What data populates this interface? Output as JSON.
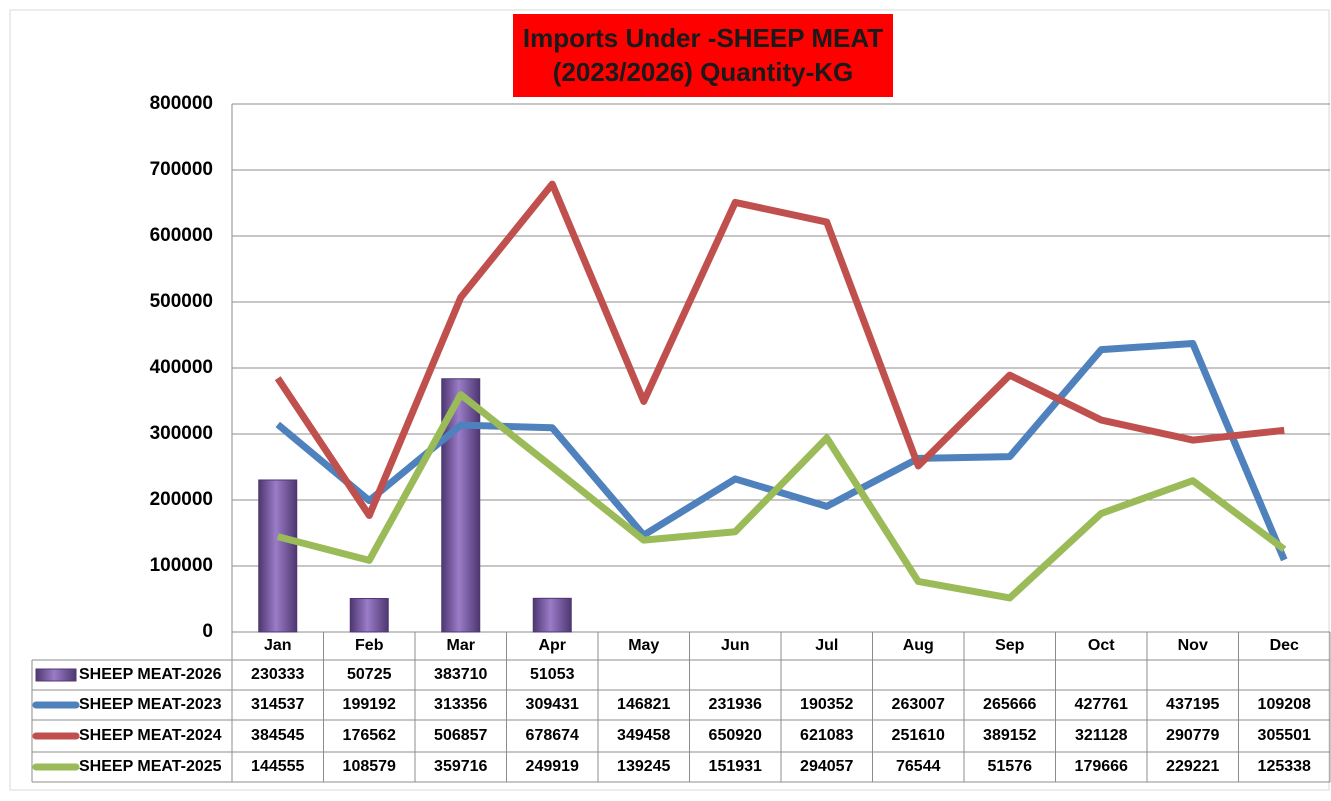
{
  "chart_data": {
    "type": "combo",
    "title": [
      "Imports Under -SHEEP MEAT",
      "(2023/2026)  Quantity-KG"
    ],
    "categories": [
      "Jan",
      "Feb",
      "Mar",
      "Apr",
      "May",
      "Jun",
      "Jul",
      "Aug",
      "Sep",
      "Oct",
      "Nov",
      "Dec"
    ],
    "series": [
      {
        "name": "SHEEP MEAT-2026",
        "type": "bar",
        "color": "#7b5ea6",
        "values": [
          230333,
          50725,
          383710,
          51053,
          null,
          null,
          null,
          null,
          null,
          null,
          null,
          null
        ]
      },
      {
        "name": "SHEEP MEAT-2023",
        "type": "line",
        "color": "#4f81bd",
        "values": [
          314537,
          199192,
          313356,
          309431,
          146821,
          231936,
          190352,
          263007,
          265666,
          427761,
          437195,
          109208
        ]
      },
      {
        "name": "SHEEP MEAT-2024",
        "type": "line",
        "color": "#c0504d",
        "values": [
          384545,
          176562,
          506857,
          678674,
          349458,
          650920,
          621083,
          251610,
          389152,
          321128,
          290779,
          305501
        ]
      },
      {
        "name": "SHEEP MEAT-2025",
        "type": "line",
        "color": "#9bbb59",
        "values": [
          144555,
          108579,
          359716,
          249919,
          139245,
          151931,
          294057,
          76544,
          51576,
          179666,
          229221,
          125338
        ]
      }
    ],
    "ylim": [
      0,
      800000
    ],
    "yticks": [
      0,
      100000,
      200000,
      300000,
      400000,
      500000,
      600000,
      700000,
      800000
    ],
    "grid": true
  }
}
